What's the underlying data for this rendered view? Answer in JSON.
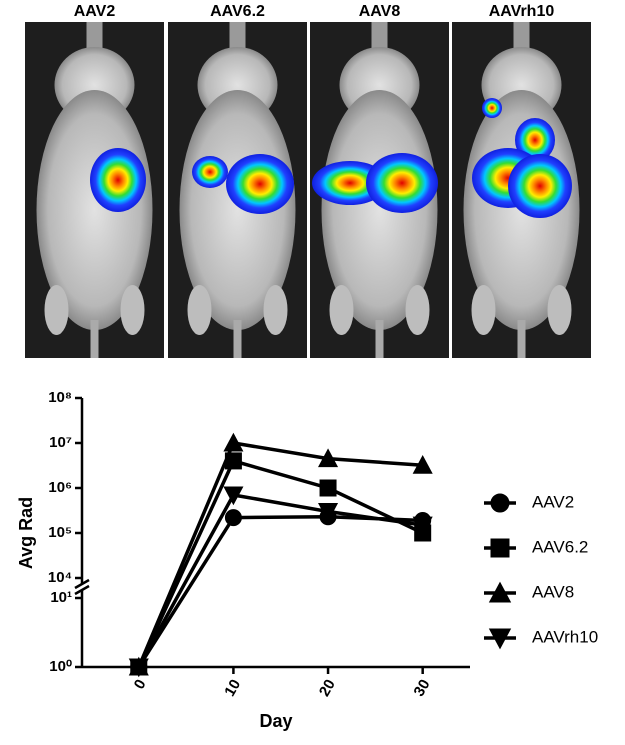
{
  "image_panels": [
    "AAV2",
    "AAV6.2",
    "AAV8",
    "AAVrh10"
  ],
  "chart_data": {
    "type": "line",
    "x_label": "Day",
    "y_label": "Avg Rad",
    "x": [
      0,
      10,
      20,
      30
    ],
    "xlim": [
      -6,
      35
    ],
    "xticks": [
      0,
      10,
      20,
      30
    ],
    "ylim": [
      1,
      100000000
    ],
    "y_scale": "log",
    "y_break": [
      10,
      10000
    ],
    "yticks": [
      {
        "value": 1,
        "label": "10⁰"
      },
      {
        "value": 10,
        "label": "10¹"
      },
      {
        "value": 10000,
        "label": "10⁴"
      },
      {
        "value": 100000,
        "label": "10⁵"
      },
      {
        "value": 1000000,
        "label": "10⁶"
      },
      {
        "value": 10000000,
        "label": "10⁷"
      },
      {
        "value": 100000000,
        "label": "10⁸"
      }
    ],
    "legend": "right",
    "series": [
      {
        "name": "AAV2",
        "color": "#000000",
        "marker": "circle",
        "values": [
          1,
          220000,
          230000,
          190000
        ]
      },
      {
        "name": "AAV6.2",
        "color": "#000000",
        "marker": "square",
        "values": [
          1,
          4000000,
          1000000,
          100000
        ]
      },
      {
        "name": "AAV8",
        "color": "#000000",
        "marker": "triangle-up",
        "values": [
          1,
          10000000,
          4500000,
          3200000
        ]
      },
      {
        "name": "AAVrh10",
        "color": "#000000",
        "marker": "triangle-down",
        "values": [
          1,
          700000,
          300000,
          150000
        ]
      }
    ]
  }
}
